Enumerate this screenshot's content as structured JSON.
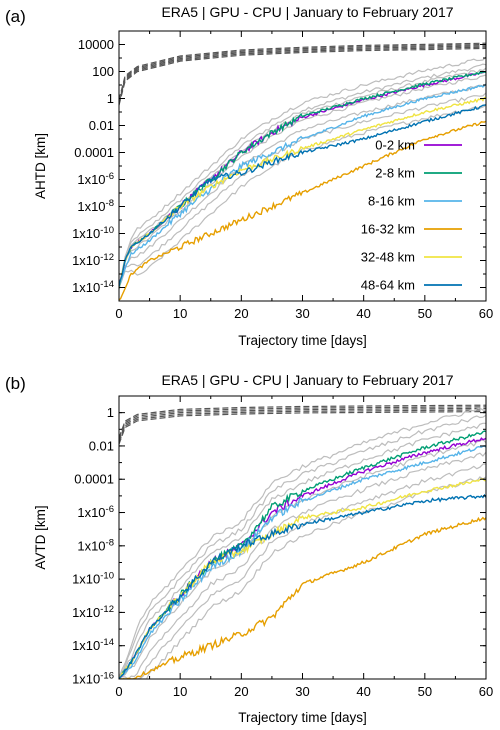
{
  "chart_data": [
    {
      "type": "line",
      "panel_label": "(a)",
      "title": "ERA5 | GPU - CPU | January to February 2017",
      "xlabel": "Trajectory time [days]",
      "ylabel": "AHTD [km]",
      "y_scale": "log",
      "xlim": [
        0,
        60
      ],
      "ylim": [
        1e-15,
        100000.0
      ],
      "x_ticks": [
        "0",
        "10",
        "20",
        "30",
        "40",
        "50",
        "60"
      ],
      "y_ticks": [
        "10000",
        "100",
        "1",
        "0.01",
        "0.0001",
        "1x10-6",
        "1x10-8",
        "1x10-10",
        "1x10-12",
        "1x10-14"
      ],
      "legend_position": "right",
      "grid": false,
      "series": [
        {
          "name": "0-2 km",
          "color": "#9400d3",
          "x": [
            0,
            1,
            2,
            5,
            10,
            15,
            20,
            25,
            30,
            40,
            50,
            60
          ],
          "y": [
            1e-14,
            1e-12,
            1e-11,
            1e-10,
            1e-08,
            1e-06,
            0.0001,
            0.003,
            0.04,
            0.8,
            10,
            90
          ]
        },
        {
          "name": "2-8 km",
          "color": "#009e73",
          "x": [
            0,
            1,
            2,
            5,
            10,
            15,
            20,
            25,
            30,
            40,
            50,
            60
          ],
          "y": [
            1e-14,
            1e-12,
            1e-11,
            1e-10,
            1e-08,
            1e-06,
            0.0001,
            0.003,
            0.05,
            1,
            12,
            100
          ]
        },
        {
          "name": "8-16 km",
          "color": "#56b4e9",
          "x": [
            0,
            1,
            2,
            5,
            10,
            15,
            20,
            25,
            30,
            40,
            50,
            60
          ],
          "y": [
            1e-14,
            3e-13,
            3e-12,
            3e-11,
            3e-09,
            2e-07,
            1e-05,
            0.0001,
            0.001,
            0.05,
            1,
            10
          ]
        },
        {
          "name": "16-32 km",
          "color": "#e69f00",
          "x": [
            0,
            1,
            2,
            5,
            10,
            15,
            20,
            25,
            30,
            40,
            50,
            60
          ],
          "y": [
            1e-15,
            1e-14,
            1e-13,
            1e-12,
            1e-11,
            1e-10,
            1e-09,
            1e-08,
            1e-07,
            1e-05,
            0.001,
            0.02
          ]
        },
        {
          "name": "32-48 km",
          "color": "#f0e442",
          "x": [
            0,
            1,
            2,
            5,
            10,
            15,
            20,
            25,
            30,
            40,
            50,
            60
          ],
          "y": [
            1e-14,
            1e-12,
            1e-11,
            1e-10,
            1e-08,
            3e-07,
            5e-06,
            3e-05,
            0.0002,
            0.005,
            0.1,
            1
          ]
        },
        {
          "name": "48-64 km",
          "color": "#0072b2",
          "x": [
            0,
            1,
            2,
            5,
            10,
            15,
            20,
            25,
            30,
            40,
            50,
            60
          ],
          "y": [
            1e-14,
            1e-12,
            1e-11,
            1e-10,
            1e-08,
            1e-06,
            3e-06,
            2e-05,
            0.0001,
            0.001,
            0.02,
            0.3
          ]
        }
      ]
    },
    {
      "type": "line",
      "panel_label": "(b)",
      "title": "ERA5 | GPU - CPU | January to February 2017",
      "xlabel": "Trajectory time [days]",
      "ylabel": "AVTD [km]",
      "y_scale": "log",
      "xlim": [
        0,
        60
      ],
      "ylim": [
        1e-16,
        10
      ],
      "x_ticks": [
        "0",
        "10",
        "20",
        "30",
        "40",
        "50",
        "60"
      ],
      "y_ticks": [
        "1",
        "0.01",
        "0.0001",
        "1x10-6",
        "1x10-8",
        "1x10-10",
        "1x10-12",
        "1x10-14",
        "1x10-16"
      ],
      "grid": false,
      "series": [
        {
          "name": "0-2 km",
          "color": "#9400d3",
          "x": [
            0,
            2,
            5,
            10,
            15,
            20,
            25,
            30,
            40,
            50,
            60
          ],
          "y": [
            1e-16,
            1e-15,
            1e-13,
            1e-11,
            1e-09,
            1e-08,
            1e-06,
            1e-05,
            0.0003,
            0.004,
            0.03
          ]
        },
        {
          "name": "2-8 km",
          "color": "#009e73",
          "x": [
            0,
            2,
            5,
            10,
            15,
            20,
            25,
            30,
            40,
            50,
            60
          ],
          "y": [
            1e-16,
            1e-15,
            1e-13,
            1e-11,
            1e-09,
            1e-08,
            2e-06,
            2e-05,
            0.0005,
            0.008,
            0.07
          ]
        },
        {
          "name": "8-16 km",
          "color": "#56b4e9",
          "x": [
            0,
            2,
            5,
            10,
            15,
            20,
            25,
            30,
            40,
            50,
            60
          ],
          "y": [
            1e-16,
            5e-16,
            5e-14,
            5e-12,
            5e-10,
            5e-09,
            5e-07,
            5e-06,
            0.0001,
            0.001,
            0.01
          ]
        },
        {
          "name": "16-32 km",
          "color": "#e69f00",
          "x": [
            0,
            2,
            5,
            10,
            15,
            20,
            25,
            30,
            40,
            50,
            60
          ],
          "y": [
            1e-16,
            1e-16,
            3e-16,
            2e-15,
            1e-14,
            5e-14,
            5e-13,
            5e-11,
            1e-09,
            5e-08,
            5e-07
          ]
        },
        {
          "name": "32-48 km",
          "color": "#f0e442",
          "x": [
            0,
            2,
            5,
            10,
            15,
            20,
            25,
            30,
            40,
            50,
            60
          ],
          "y": [
            1e-16,
            1e-15,
            1e-13,
            1e-11,
            1e-09,
            5e-09,
            5e-08,
            5e-07,
            2e-06,
            2e-05,
            0.0001
          ]
        },
        {
          "name": "48-64 km",
          "color": "#0072b2",
          "x": [
            0,
            2,
            5,
            10,
            15,
            20,
            25,
            30,
            40,
            50,
            60
          ],
          "y": [
            1e-16,
            1e-15,
            1e-13,
            1e-11,
            1e-09,
            1e-08,
            5e-08,
            2e-07,
            1e-06,
            5e-06,
            1e-05
          ]
        }
      ]
    }
  ]
}
